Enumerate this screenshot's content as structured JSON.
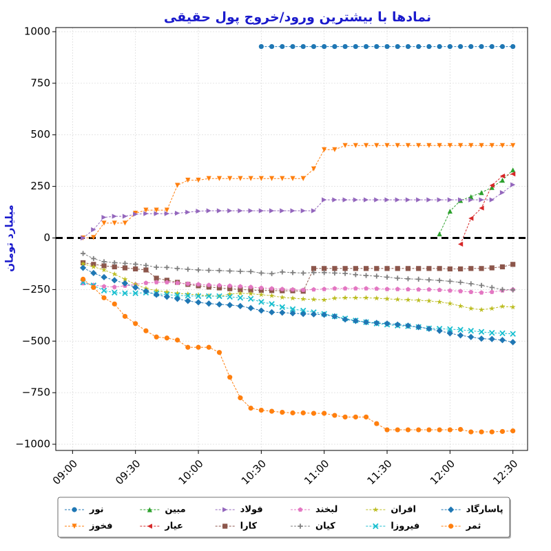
{
  "chart_data": {
    "type": "line",
    "title": "نمادها با بیشترین ورود/خروج پول حقیقی",
    "xlabel": "",
    "ylabel": "میلیارد تومان",
    "xlim": [
      "08:52",
      "12:37"
    ],
    "ylim": [
      -1030,
      1020
    ],
    "x_ticks": [
      "09:00",
      "09:30",
      "10:00",
      "10:30",
      "11:00",
      "11:30",
      "12:00",
      "12:30"
    ],
    "y_ticks": [
      1000,
      750,
      500,
      250,
      0,
      -250,
      -500,
      -750,
      -1000
    ],
    "grid": true,
    "zero_line": true,
    "legend": "bottom-outside",
    "series": [
      {
        "name": "نور",
        "color": "#1f77b4",
        "marker": "circle",
        "x": [
          "10:30",
          "10:35",
          "10:40",
          "10:45",
          "10:50",
          "10:55",
          "11:00",
          "11:05",
          "11:10",
          "11:15",
          "11:20",
          "11:25",
          "11:30",
          "11:35",
          "11:40",
          "11:45",
          "11:50",
          "11:55",
          "12:00",
          "12:05",
          "12:10",
          "12:15",
          "12:20",
          "12:25",
          "12:30"
        ],
        "y": [
          928,
          928,
          928,
          928,
          928,
          928,
          928,
          928,
          928,
          928,
          928,
          928,
          928,
          928,
          928,
          928,
          928,
          928,
          928,
          928,
          928,
          928,
          928,
          928,
          928
        ]
      },
      {
        "name": "فخوز",
        "color": "#ff7f0e",
        "marker": "triangle-down",
        "x": [
          "09:05",
          "09:10",
          "09:15",
          "09:20",
          "09:25",
          "09:30",
          "09:35",
          "09:40",
          "09:45",
          "09:50",
          "09:55",
          "10:00",
          "10:05",
          "10:10",
          "10:15",
          "10:20",
          "10:25",
          "10:30",
          "10:35",
          "10:40",
          "10:45",
          "10:50",
          "10:55",
          "11:00",
          "11:05",
          "11:10",
          "11:15",
          "11:20",
          "11:25",
          "11:30",
          "11:35",
          "11:40",
          "11:45",
          "11:50",
          "11:55",
          "12:00",
          "12:05",
          "12:10",
          "12:15",
          "12:20",
          "12:25",
          "12:30"
        ],
        "y": [
          0,
          2,
          72,
          72,
          72,
          120,
          135,
          135,
          135,
          255,
          280,
          280,
          288,
          288,
          288,
          288,
          288,
          288,
          288,
          288,
          288,
          288,
          335,
          428,
          428,
          448,
          448,
          448,
          448,
          448,
          448,
          448,
          448,
          448,
          448,
          448,
          448,
          448,
          448,
          448,
          448,
          448
        ]
      },
      {
        "name": "مبین",
        "color": "#2ca02c",
        "marker": "triangle-up",
        "x": [
          "11:55",
          "12:00",
          "12:05",
          "12:10",
          "12:15",
          "12:20",
          "12:25",
          "12:30"
        ],
        "y": [
          20,
          130,
          182,
          200,
          220,
          245,
          280,
          330
        ]
      },
      {
        "name": "عیار",
        "color": "#d62728",
        "marker": "triangle-left",
        "x": [
          "12:05",
          "12:10",
          "12:15",
          "12:20",
          "12:25",
          "12:30"
        ],
        "y": [
          -30,
          95,
          145,
          255,
          300,
          310
        ]
      },
      {
        "name": "فولاد",
        "color": "#9467bd",
        "marker": "triangle-right",
        "x": [
          "09:05",
          "09:10",
          "09:15",
          "09:20",
          "09:25",
          "09:30",
          "09:35",
          "09:40",
          "09:45",
          "09:50",
          "09:55",
          "10:00",
          "10:05",
          "10:10",
          "10:15",
          "10:20",
          "10:25",
          "10:30",
          "10:35",
          "10:40",
          "10:45",
          "10:50",
          "10:55",
          "11:00",
          "11:05",
          "11:10",
          "11:15",
          "11:20",
          "11:25",
          "11:30",
          "11:35",
          "11:40",
          "11:45",
          "11:50",
          "11:55",
          "12:00",
          "12:05",
          "12:10",
          "12:15",
          "12:20",
          "12:25",
          "12:30"
        ],
        "y": [
          0,
          40,
          100,
          105,
          105,
          115,
          118,
          118,
          118,
          120,
          125,
          130,
          132,
          132,
          132,
          132,
          132,
          132,
          132,
          132,
          132,
          132,
          132,
          185,
          185,
          185,
          185,
          185,
          185,
          185,
          185,
          185,
          185,
          185,
          185,
          185,
          185,
          185,
          185,
          185,
          220,
          258
        ]
      },
      {
        "name": "کارا",
        "color": "#8c564b",
        "marker": "square",
        "x": [
          "09:05",
          "09:10",
          "09:15",
          "09:20",
          "09:25",
          "09:30",
          "09:35",
          "09:40",
          "09:45",
          "09:50",
          "09:55",
          "10:00",
          "10:05",
          "10:10",
          "10:15",
          "10:20",
          "10:25",
          "10:30",
          "10:35",
          "10:40",
          "10:45",
          "10:50",
          "10:55",
          "11:00",
          "11:05",
          "11:10",
          "11:15",
          "11:20",
          "11:25",
          "11:30",
          "11:35",
          "11:40",
          "11:45",
          "11:50",
          "11:55",
          "12:00",
          "12:05",
          "12:10",
          "12:15",
          "12:20",
          "12:25",
          "12:30"
        ],
        "y": [
          -120,
          -128,
          -135,
          -140,
          -145,
          -150,
          -155,
          -195,
          -205,
          -215,
          -225,
          -232,
          -238,
          -242,
          -246,
          -250,
          -252,
          -254,
          -255,
          -256,
          -256,
          -258,
          -148,
          -148,
          -148,
          -148,
          -148,
          -148,
          -148,
          -148,
          -148,
          -148,
          -148,
          -148,
          -148,
          -150,
          -150,
          -148,
          -148,
          -145,
          -140,
          -128
        ]
      },
      {
        "name": "لبخند",
        "color": "#e377c2",
        "marker": "pentagon",
        "x": [
          "09:05",
          "09:10",
          "09:15",
          "09:20",
          "09:25",
          "09:30",
          "09:35",
          "09:40",
          "09:45",
          "09:50",
          "09:55",
          "10:00",
          "10:05",
          "10:10",
          "10:15",
          "10:20",
          "10:25",
          "10:30",
          "10:35",
          "10:40",
          "10:45",
          "10:50",
          "10:55",
          "11:00",
          "11:05",
          "11:10",
          "11:15",
          "11:20",
          "11:25",
          "11:30",
          "11:35",
          "11:40",
          "11:45",
          "11:50",
          "11:55",
          "12:00",
          "12:05",
          "12:10",
          "12:15",
          "12:20",
          "12:25",
          "12:30"
        ],
        "y": [
          -220,
          -228,
          -235,
          -238,
          -232,
          -225,
          -218,
          -215,
          -215,
          -218,
          -222,
          -225,
          -228,
          -230,
          -232,
          -235,
          -238,
          -242,
          -245,
          -248,
          -250,
          -252,
          -250,
          -248,
          -245,
          -245,
          -245,
          -245,
          -246,
          -248,
          -248,
          -249,
          -250,
          -250,
          -252,
          -255,
          -258,
          -262,
          -265,
          -262,
          -255,
          -250
        ]
      },
      {
        "name": "کیان",
        "color": "#7f7f7f",
        "marker": "plus",
        "x": [
          "09:05",
          "09:10",
          "09:15",
          "09:20",
          "09:25",
          "09:30",
          "09:35",
          "09:40",
          "09:45",
          "09:50",
          "09:55",
          "10:00",
          "10:05",
          "10:10",
          "10:15",
          "10:20",
          "10:25",
          "10:30",
          "10:35",
          "10:40",
          "10:45",
          "10:50",
          "10:55",
          "11:00",
          "11:05",
          "11:10",
          "11:15",
          "11:20",
          "11:25",
          "11:30",
          "11:35",
          "11:40",
          "11:45",
          "11:50",
          "11:55",
          "12:00",
          "12:05",
          "12:10",
          "12:15",
          "12:20",
          "12:25",
          "12:30"
        ],
        "y": [
          -75,
          -100,
          -115,
          -120,
          -123,
          -127,
          -133,
          -142,
          -143,
          -148,
          -152,
          -155,
          -157,
          -158,
          -160,
          -162,
          -163,
          -170,
          -173,
          -165,
          -168,
          -170,
          -168,
          -168,
          -170,
          -172,
          -178,
          -182,
          -185,
          -190,
          -195,
          -198,
          -200,
          -203,
          -206,
          -210,
          -215,
          -222,
          -230,
          -240,
          -250,
          -252
        ]
      },
      {
        "name": "افران",
        "color": "#bcbd22",
        "marker": "star",
        "x": [
          "09:05",
          "09:10",
          "09:15",
          "09:20",
          "09:25",
          "09:30",
          "09:35",
          "09:40",
          "09:45",
          "09:50",
          "09:55",
          "10:00",
          "10:05",
          "10:10",
          "10:15",
          "10:20",
          "10:25",
          "10:30",
          "10:35",
          "10:40",
          "10:45",
          "10:50",
          "10:55",
          "11:00",
          "11:05",
          "11:10",
          "11:15",
          "11:20",
          "11:25",
          "11:30",
          "11:35",
          "11:40",
          "11:45",
          "11:50",
          "11:55",
          "12:00",
          "12:05",
          "12:10",
          "12:15",
          "12:20",
          "12:25",
          "12:30"
        ],
        "y": [
          -125,
          -140,
          -155,
          -175,
          -200,
          -225,
          -245,
          -255,
          -262,
          -268,
          -272,
          -276,
          -280,
          -283,
          -272,
          -268,
          -270,
          -275,
          -280,
          -288,
          -292,
          -296,
          -298,
          -300,
          -292,
          -290,
          -290,
          -290,
          -292,
          -295,
          -298,
          -300,
          -302,
          -305,
          -310,
          -318,
          -330,
          -342,
          -348,
          -342,
          -332,
          -335
        ]
      },
      {
        "name": "فیروزا",
        "color": "#17becf",
        "marker": "x",
        "x": [
          "09:05",
          "09:10",
          "09:15",
          "09:20",
          "09:25",
          "09:30",
          "09:35",
          "09:40",
          "09:45",
          "09:50",
          "09:55",
          "10:00",
          "10:05",
          "10:10",
          "10:15",
          "10:20",
          "10:25",
          "10:30",
          "10:35",
          "10:40",
          "10:45",
          "10:50",
          "10:55",
          "11:00",
          "11:05",
          "11:10",
          "11:15",
          "11:20",
          "11:25",
          "11:30",
          "11:35",
          "11:40",
          "11:45",
          "11:50",
          "11:55",
          "12:00",
          "12:05",
          "12:10",
          "12:15",
          "12:20",
          "12:25",
          "12:30"
        ],
        "y": [
          -215,
          -230,
          -255,
          -265,
          -268,
          -268,
          -265,
          -270,
          -275,
          -278,
          -280,
          -282,
          -282,
          -282,
          -285,
          -290,
          -295,
          -310,
          -320,
          -335,
          -345,
          -352,
          -360,
          -368,
          -380,
          -390,
          -400,
          -408,
          -415,
          -420,
          -425,
          -428,
          -432,
          -438,
          -440,
          -442,
          -445,
          -450,
          -455,
          -460,
          -462,
          -465
        ]
      },
      {
        "name": "پاسارگاد",
        "color": "#1f77b4",
        "marker": "diamond",
        "x": [
          "09:05",
          "09:10",
          "09:15",
          "09:20",
          "09:25",
          "09:30",
          "09:35",
          "09:40",
          "09:45",
          "09:50",
          "09:55",
          "10:00",
          "10:05",
          "10:10",
          "10:15",
          "10:20",
          "10:25",
          "10:30",
          "10:35",
          "10:40",
          "10:45",
          "10:50",
          "10:55",
          "11:00",
          "11:05",
          "11:10",
          "11:15",
          "11:20",
          "11:25",
          "11:30",
          "11:35",
          "11:40",
          "11:45",
          "11:50",
          "11:55",
          "12:00",
          "12:05",
          "12:10",
          "12:15",
          "12:20",
          "12:25",
          "12:30"
        ],
        "y": [
          -145,
          -170,
          -190,
          -205,
          -220,
          -240,
          -258,
          -275,
          -285,
          -295,
          -305,
          -312,
          -318,
          -322,
          -325,
          -330,
          -340,
          -352,
          -360,
          -362,
          -365,
          -368,
          -370,
          -372,
          -380,
          -395,
          -402,
          -408,
          -412,
          -415,
          -420,
          -425,
          -432,
          -440,
          -450,
          -462,
          -472,
          -480,
          -488,
          -490,
          -495,
          -505
        ]
      },
      {
        "name": "ثمر",
        "color": "#ff7f0e",
        "marker": "circle",
        "x": [
          "09:05",
          "09:10",
          "09:15",
          "09:20",
          "09:25",
          "09:30",
          "09:35",
          "09:40",
          "09:45",
          "09:50",
          "09:55",
          "10:00",
          "10:05",
          "10:10",
          "10:15",
          "10:20",
          "10:25",
          "10:30",
          "10:35",
          "10:40",
          "10:45",
          "10:50",
          "10:55",
          "11:00",
          "11:05",
          "11:10",
          "11:15",
          "11:20",
          "11:25",
          "11:30",
          "11:35",
          "11:40",
          "11:45",
          "11:50",
          "11:55",
          "12:00",
          "12:05",
          "12:10",
          "12:15",
          "12:20",
          "12:25",
          "12:30"
        ],
        "y": [
          -200,
          -240,
          -290,
          -320,
          -380,
          -415,
          -450,
          -480,
          -485,
          -495,
          -530,
          -530,
          -530,
          -555,
          -675,
          -775,
          -825,
          -835,
          -840,
          -845,
          -848,
          -848,
          -850,
          -850,
          -860,
          -868,
          -868,
          -868,
          -900,
          -930,
          -930,
          -930,
          -930,
          -930,
          -930,
          -930,
          -928,
          -940,
          -940,
          -940,
          -938,
          -935
        ]
      }
    ]
  }
}
